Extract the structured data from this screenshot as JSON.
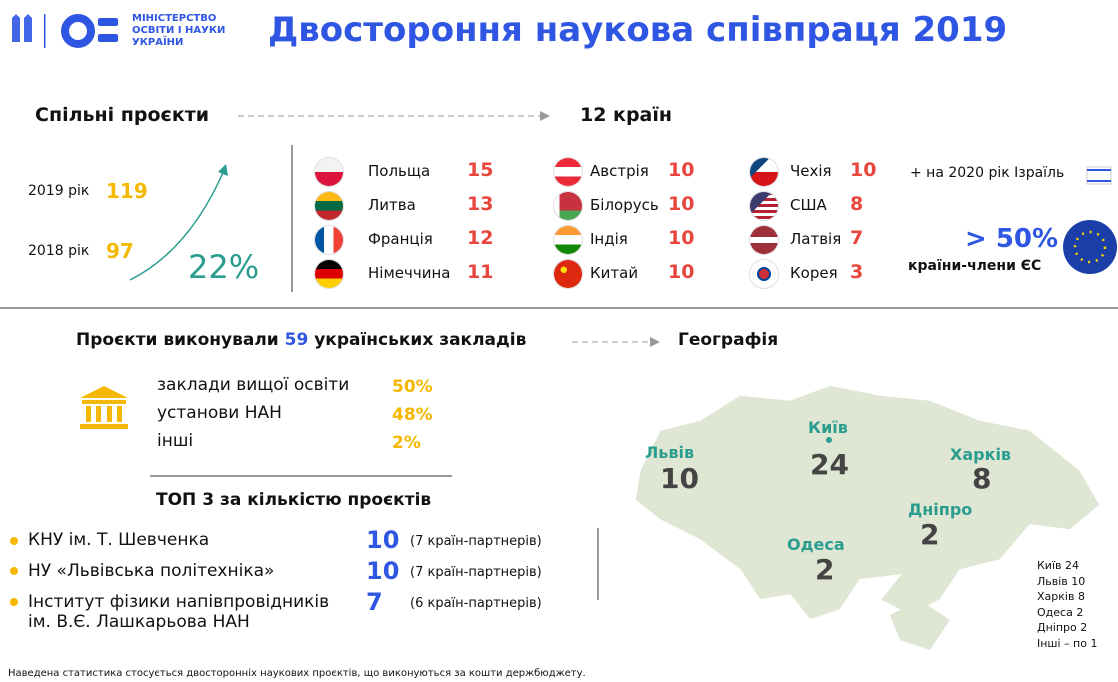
{
  "header": {
    "ministry": [
      "МІНІСТЕРСТВО",
      "ОСВІТИ І НАУКИ",
      "УКРАЇНИ"
    ],
    "title": "Двостороння наукова співпраця 2019"
  },
  "projects": {
    "title": "Спільні проєкти",
    "countries_title": "12 країн",
    "years": [
      {
        "label": "2019 рік",
        "value": "119"
      },
      {
        "label": "2018 рік",
        "value": "97"
      }
    ],
    "growth": "22%"
  },
  "countries": [
    {
      "name": "Польща",
      "value": "15"
    },
    {
      "name": "Литва",
      "value": "13"
    },
    {
      "name": "Франція",
      "value": "12"
    },
    {
      "name": "Німеччина",
      "value": "11"
    },
    {
      "name": "Австрія",
      "value": "10"
    },
    {
      "name": "Білорусь",
      "value": "10"
    },
    {
      "name": "Індія",
      "value": "10"
    },
    {
      "name": "Китай",
      "value": "10"
    },
    {
      "name": "Чехія",
      "value": "10"
    },
    {
      "name": "США",
      "value": "8"
    },
    {
      "name": "Латвія",
      "value": "7"
    },
    {
      "name": "Корея",
      "value": "3"
    }
  ],
  "extra": "+ на 2020 рік Ізраїль",
  "eu": {
    "value": "> 50%",
    "label": "країни-члени ЄС"
  },
  "institutions": {
    "title": [
      "Проєкти виконували",
      "59",
      "українських закладів"
    ],
    "types": [
      {
        "name": "заклади вищої освіти",
        "value": "50%"
      },
      {
        "name": "установи НАН",
        "value": "48%"
      },
      {
        "name": "інші",
        "value": "2%"
      }
    ]
  },
  "top": {
    "title": "ТОП 3 за кількістю проєктів",
    "items": [
      {
        "name": "КНУ ім. Т. Шевченка",
        "value": "10",
        "partners": "(7 країн-партнерів)"
      },
      {
        "name": "НУ «Львівська політехніка»",
        "value": "10",
        "partners": "(7 країн-партнерів)"
      },
      {
        "name": "Інститут фізики напівпровідників\nім. В.Є. Лашкарьова НАН",
        "value": "7",
        "partners": "(6 країн-партнерів)"
      }
    ]
  },
  "geography": {
    "title": "Географія",
    "cities": [
      {
        "name": "Львів",
        "value": "10"
      },
      {
        "name": "Київ",
        "value": "24"
      },
      {
        "name": "Харків",
        "value": "8"
      },
      {
        "name": "Дніпро",
        "value": "2"
      },
      {
        "name": "Одеса",
        "value": "2"
      }
    ],
    "legend": [
      "Київ 24",
      "Львів 10",
      "Харків 8",
      "Одеса 2",
      "Дніпро 2",
      "Інші – по 1"
    ]
  },
  "footnote": "Наведена статистика стосується двосторонніх наукових проєктів, що виконуються за кошти держбюджету."
}
